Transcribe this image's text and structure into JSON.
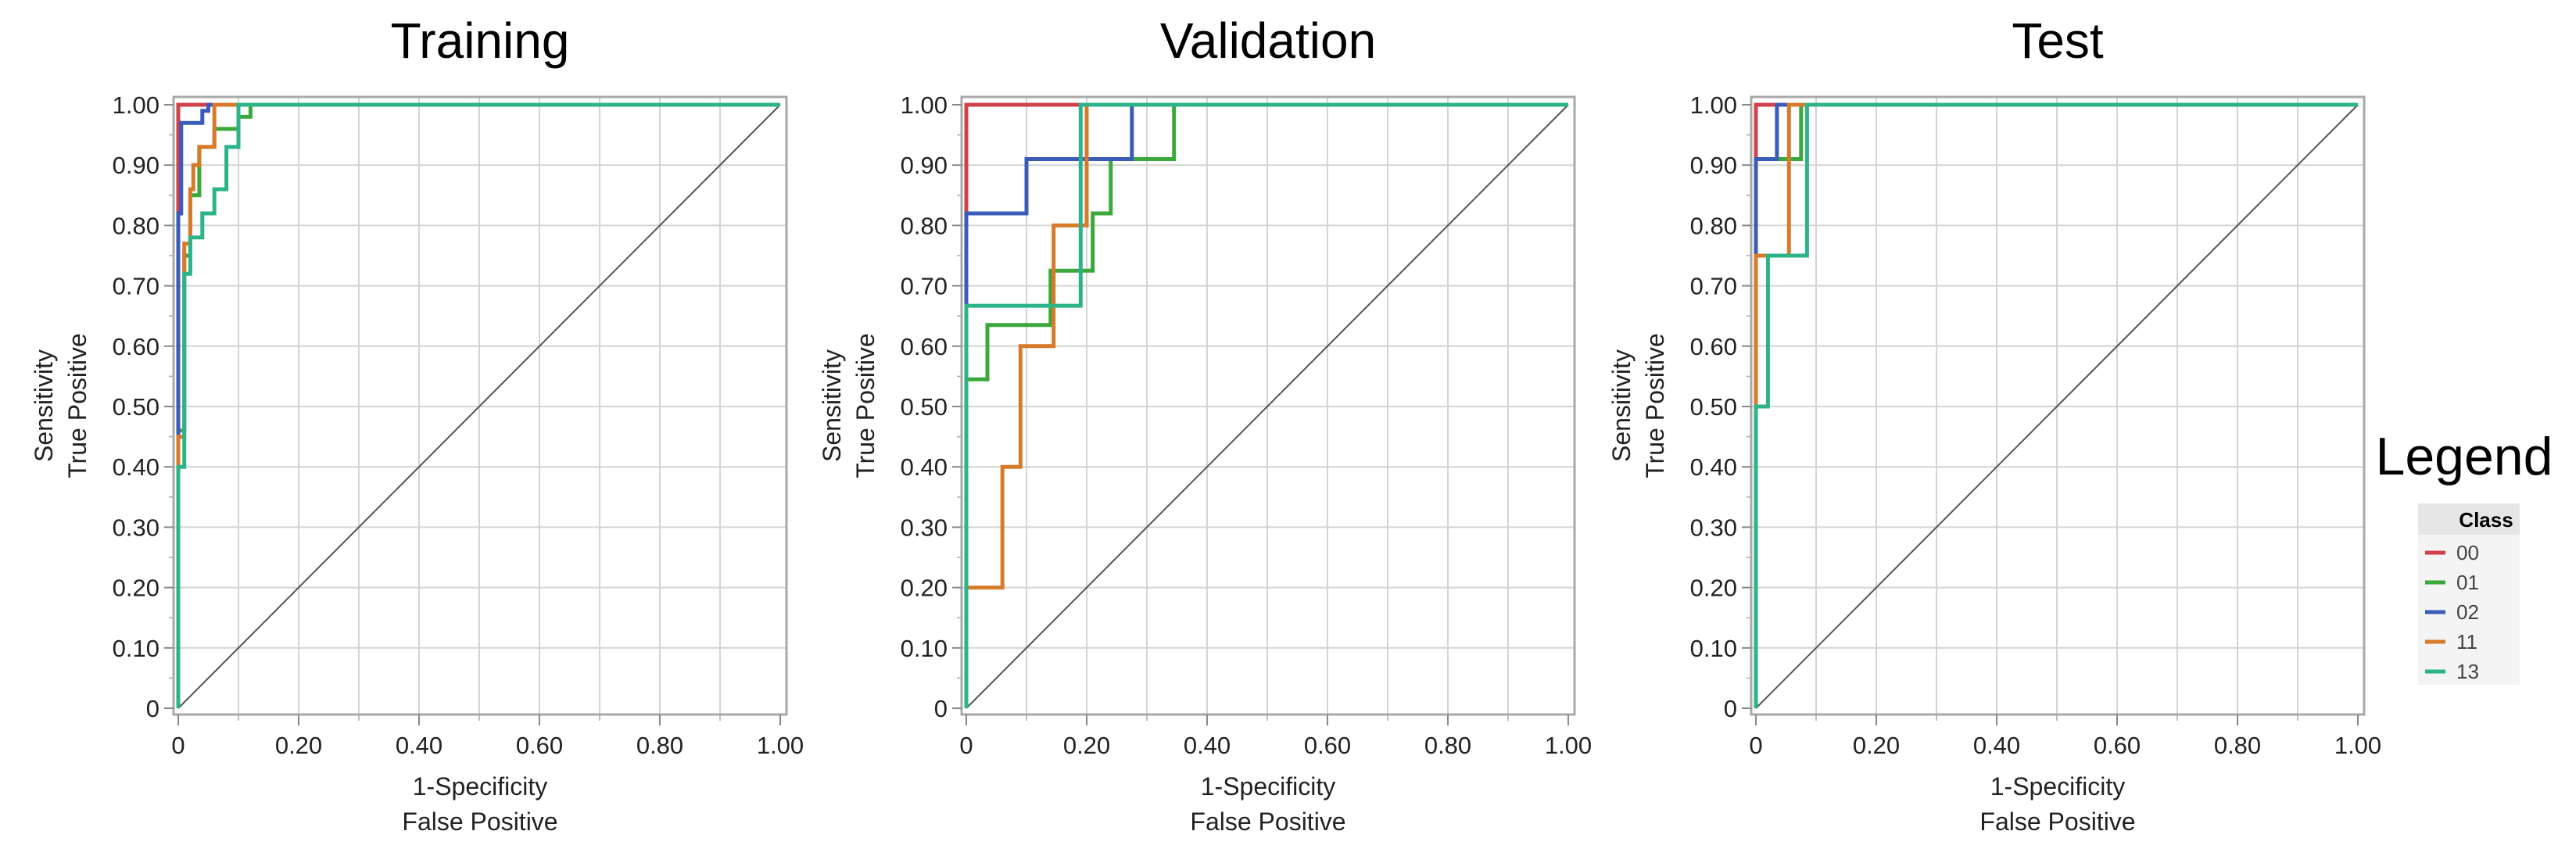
{
  "chart_data": [
    {
      "type": "line",
      "title": "Training",
      "xlabel": [
        "1-Specificity",
        "False Positive"
      ],
      "ylabel": [
        "Sensitivity",
        "True Positive"
      ],
      "xlim": [
        0,
        1
      ],
      "ylim": [
        0,
        1
      ],
      "x_ticks": [
        "0",
        "0.20",
        "0.40",
        "0.60",
        "0.80",
        "1.00"
      ],
      "y_ticks": [
        "0",
        "0.10",
        "0.20",
        "0.30",
        "0.40",
        "0.50",
        "0.60",
        "0.70",
        "0.80",
        "0.90",
        "1.00"
      ],
      "grid": true,
      "series": [
        {
          "name": "00",
          "x": [
            0,
            0,
            1
          ],
          "y": [
            0,
            1,
            1
          ]
        },
        {
          "name": "01",
          "x": [
            0,
            0,
            0.01,
            0.01,
            0.02,
            0.02,
            0.035,
            0.035,
            0.06,
            0.06,
            0.1,
            0.1,
            0.12,
            0.12,
            1
          ],
          "y": [
            0,
            0.46,
            0.46,
            0.75,
            0.75,
            0.85,
            0.85,
            0.93,
            0.93,
            0.96,
            0.96,
            0.98,
            0.98,
            1,
            1
          ]
        },
        {
          "name": "02",
          "x": [
            0,
            0,
            0.005,
            0.005,
            0.04,
            0.04,
            0.05,
            0.05,
            1
          ],
          "y": [
            0,
            0.82,
            0.82,
            0.97,
            0.97,
            0.99,
            0.99,
            1,
            1
          ]
        },
        {
          "name": "11",
          "x": [
            0,
            0,
            0.01,
            0.01,
            0.02,
            0.02,
            0.025,
            0.025,
            0.035,
            0.035,
            0.06,
            0.06,
            1
          ],
          "y": [
            0,
            0.45,
            0.45,
            0.77,
            0.77,
            0.86,
            0.86,
            0.9,
            0.9,
            0.93,
            0.93,
            1,
            1
          ]
        },
        {
          "name": "13",
          "x": [
            0,
            0,
            0.01,
            0.01,
            0.02,
            0.02,
            0.04,
            0.04,
            0.06,
            0.06,
            0.08,
            0.08,
            0.1,
            0.1,
            1
          ],
          "y": [
            0,
            0.4,
            0.4,
            0.72,
            0.72,
            0.78,
            0.78,
            0.82,
            0.82,
            0.86,
            0.86,
            0.93,
            0.93,
            1,
            1
          ]
        },
        {
          "name": "diagonal",
          "x": [
            0,
            1
          ],
          "y": [
            0,
            1
          ]
        }
      ]
    },
    {
      "type": "line",
      "title": "Validation",
      "xlabel": [
        "1-Specificity",
        "False Positive"
      ],
      "ylabel": [
        "Sensitivity",
        "True Positive"
      ],
      "xlim": [
        0,
        1
      ],
      "ylim": [
        0,
        1
      ],
      "x_ticks": [
        "0",
        "0.20",
        "0.40",
        "0.60",
        "0.80",
        "1.00"
      ],
      "y_ticks": [
        "0",
        "0.10",
        "0.20",
        "0.30",
        "0.40",
        "0.50",
        "0.60",
        "0.70",
        "0.80",
        "0.90",
        "1.00"
      ],
      "grid": true,
      "series": [
        {
          "name": "00",
          "x": [
            0,
            0,
            0.19,
            0.19,
            1
          ],
          "y": [
            0,
            1,
            1,
            1,
            1
          ]
        },
        {
          "name": "01",
          "x": [
            0,
            0,
            0.035,
            0.035,
            0.14,
            0.14,
            0.21,
            0.21,
            0.24,
            0.24,
            0.345,
            0.345,
            1
          ],
          "y": [
            0,
            0.545,
            0.545,
            0.635,
            0.635,
            0.725,
            0.725,
            0.82,
            0.82,
            0.91,
            0.91,
            1,
            1
          ]
        },
        {
          "name": "02",
          "x": [
            0,
            0,
            0.1,
            0.1,
            0.275,
            0.275,
            1
          ],
          "y": [
            0,
            0.82,
            0.82,
            0.91,
            0.91,
            1,
            1
          ]
        },
        {
          "name": "11",
          "x": [
            0,
            0,
            0.06,
            0.06,
            0.09,
            0.09,
            0.145,
            0.145,
            0.2,
            0.2,
            1
          ],
          "y": [
            0,
            0.2,
            0.2,
            0.4,
            0.4,
            0.6,
            0.6,
            0.8,
            0.8,
            1,
            1
          ]
        },
        {
          "name": "13",
          "x": [
            0,
            0,
            0.19,
            0.19,
            1
          ],
          "y": [
            0,
            0.667,
            0.667,
            1,
            1
          ]
        },
        {
          "name": "diagonal",
          "x": [
            0,
            1
          ],
          "y": [
            0,
            1
          ]
        }
      ]
    },
    {
      "type": "line",
      "title": "Test",
      "xlabel": [
        "1-Specificity",
        "False Positive"
      ],
      "ylabel": [
        "Sensitivity",
        "True Positive"
      ],
      "xlim": [
        0,
        1
      ],
      "ylim": [
        0,
        1
      ],
      "x_ticks": [
        "0",
        "0.20",
        "0.40",
        "0.60",
        "0.80",
        "1.00"
      ],
      "y_ticks": [
        "0",
        "0.10",
        "0.20",
        "0.30",
        "0.40",
        "0.50",
        "0.60",
        "0.70",
        "0.80",
        "0.90",
        "1.00"
      ],
      "grid": true,
      "series": [
        {
          "name": "00",
          "x": [
            0,
            0,
            1
          ],
          "y": [
            0,
            1,
            1
          ]
        },
        {
          "name": "01",
          "x": [
            0,
            0,
            0.065,
            0.065,
            0.075,
            0.075,
            1
          ],
          "y": [
            0,
            0.91,
            0.91,
            0.91,
            0.91,
            1,
            1
          ]
        },
        {
          "name": "02",
          "x": [
            0,
            0,
            0.035,
            0.035,
            1
          ],
          "y": [
            0,
            0.91,
            0.91,
            1,
            1
          ]
        },
        {
          "name": "11",
          "x": [
            0,
            0,
            0.055,
            0.055,
            1
          ],
          "y": [
            0,
            0.75,
            0.75,
            1,
            1
          ]
        },
        {
          "name": "13",
          "x": [
            0,
            0,
            0.02,
            0.02,
            0.085,
            0.085,
            1
          ],
          "y": [
            0,
            0.5,
            0.5,
            0.75,
            0.75,
            1,
            1
          ]
        },
        {
          "name": "diagonal",
          "x": [
            0,
            1
          ],
          "y": [
            0,
            1
          ]
        }
      ]
    }
  ],
  "legend": {
    "title": "Legend",
    "header": "Class",
    "placement": "right",
    "items": [
      {
        "name": "00",
        "color": "#d1414a"
      },
      {
        "name": "01",
        "color": "#3ba83b"
      },
      {
        "name": "02",
        "color": "#3b5bb8"
      },
      {
        "name": "11",
        "color": "#d77a2a"
      },
      {
        "name": "13",
        "color": "#2db38a"
      }
    ]
  },
  "colors": {
    "00": "#d1414a",
    "01": "#3ba83b",
    "02": "#3b5bb8",
    "11": "#d77a2a",
    "13": "#2db38a",
    "diagonal": "#555555",
    "grid": "#d4d4d4",
    "frame": "#a8a8a8"
  }
}
